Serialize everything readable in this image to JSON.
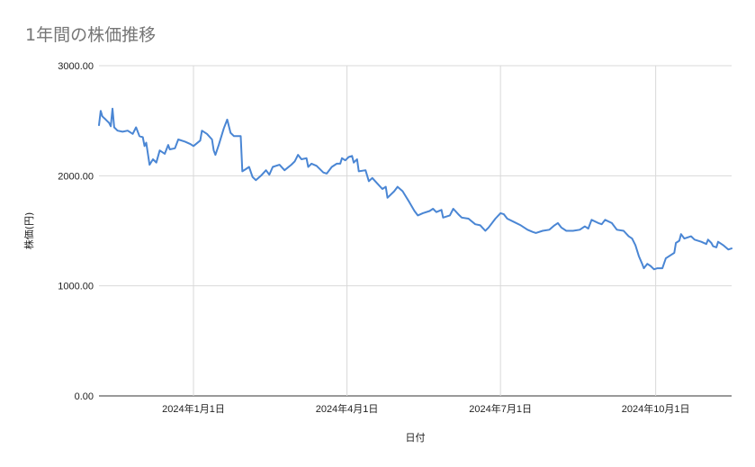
{
  "chart_data": {
    "type": "line",
    "title": "1年間の株価推移",
    "xlabel": "日付",
    "ylabel": "株価(円)",
    "ylim": [
      0,
      3000
    ],
    "y_ticks": [
      "0.00",
      "1000.00",
      "2000.00",
      "3000.00"
    ],
    "x_ticks": [
      {
        "date": "2024-01-01",
        "label": "2024年1月1日"
      },
      {
        "date": "2024-04-01",
        "label": "2024年4月1日"
      },
      {
        "date": "2024-07-01",
        "label": "2024年7月1日"
      },
      {
        "date": "2024-10-01",
        "label": "2024年10月1日"
      }
    ],
    "xlim": [
      "2023-11-06",
      "2024-11-15"
    ],
    "grid": true,
    "legend": "none",
    "series": [
      {
        "color": "#4a86d4",
        "points": [
          [
            "2023-11-06",
            2460
          ],
          [
            "2023-11-07",
            2590
          ],
          [
            "2023-11-08",
            2540
          ],
          [
            "2023-11-10",
            2510
          ],
          [
            "2023-11-12",
            2480
          ],
          [
            "2023-11-13",
            2450
          ],
          [
            "2023-11-14",
            2610
          ],
          [
            "2023-11-15",
            2440
          ],
          [
            "2023-11-17",
            2410
          ],
          [
            "2023-11-20",
            2400
          ],
          [
            "2023-11-23",
            2410
          ],
          [
            "2023-11-26",
            2380
          ],
          [
            "2023-11-28",
            2440
          ],
          [
            "2023-11-30",
            2360
          ],
          [
            "2023-12-02",
            2350
          ],
          [
            "2023-12-03",
            2270
          ],
          [
            "2023-12-04",
            2300
          ],
          [
            "2023-12-06",
            2100
          ],
          [
            "2023-12-08",
            2150
          ],
          [
            "2023-12-10",
            2120
          ],
          [
            "2023-12-12",
            2230
          ],
          [
            "2023-12-15",
            2200
          ],
          [
            "2023-12-17",
            2280
          ],
          [
            "2023-12-18",
            2240
          ],
          [
            "2023-12-21",
            2250
          ],
          [
            "2023-12-23",
            2330
          ],
          [
            "2023-12-27",
            2310
          ],
          [
            "2023-12-30",
            2290
          ],
          [
            "2024-01-01",
            2270
          ],
          [
            "2024-01-05",
            2320
          ],
          [
            "2024-01-06",
            2410
          ],
          [
            "2024-01-09",
            2380
          ],
          [
            "2024-01-12",
            2330
          ],
          [
            "2024-01-13",
            2230
          ],
          [
            "2024-01-14",
            2190
          ],
          [
            "2024-01-16",
            2280
          ],
          [
            "2024-01-19",
            2430
          ],
          [
            "2024-01-21",
            2510
          ],
          [
            "2024-01-23",
            2390
          ],
          [
            "2024-01-25",
            2360
          ],
          [
            "2024-01-29",
            2360
          ],
          [
            "2024-01-30",
            2040
          ],
          [
            "2024-02-01",
            2060
          ],
          [
            "2024-02-03",
            2080
          ],
          [
            "2024-02-05",
            1990
          ],
          [
            "2024-02-07",
            1960
          ],
          [
            "2024-02-10",
            2000
          ],
          [
            "2024-02-13",
            2050
          ],
          [
            "2024-02-15",
            2010
          ],
          [
            "2024-02-17",
            2080
          ],
          [
            "2024-02-21",
            2100
          ],
          [
            "2024-02-24",
            2050
          ],
          [
            "2024-02-28",
            2100
          ],
          [
            "2024-03-01",
            2130
          ],
          [
            "2024-03-03",
            2190
          ],
          [
            "2024-03-05",
            2150
          ],
          [
            "2024-03-08",
            2160
          ],
          [
            "2024-03-09",
            2080
          ],
          [
            "2024-03-11",
            2110
          ],
          [
            "2024-03-14",
            2090
          ],
          [
            "2024-03-18",
            2030
          ],
          [
            "2024-03-20",
            2020
          ],
          [
            "2024-03-23",
            2080
          ],
          [
            "2024-03-26",
            2110
          ],
          [
            "2024-03-28",
            2110
          ],
          [
            "2024-03-29",
            2160
          ],
          [
            "2024-03-31",
            2140
          ],
          [
            "2024-04-02",
            2170
          ],
          [
            "2024-04-04",
            2180
          ],
          [
            "2024-04-05",
            2120
          ],
          [
            "2024-04-07",
            2150
          ],
          [
            "2024-04-08",
            2040
          ],
          [
            "2024-04-12",
            2050
          ],
          [
            "2024-04-14",
            1950
          ],
          [
            "2024-04-16",
            1980
          ],
          [
            "2024-04-19",
            1930
          ],
          [
            "2024-04-22",
            1880
          ],
          [
            "2024-04-24",
            1900
          ],
          [
            "2024-04-25",
            1800
          ],
          [
            "2024-04-29",
            1860
          ],
          [
            "2024-05-01",
            1900
          ],
          [
            "2024-05-04",
            1860
          ],
          [
            "2024-05-08",
            1760
          ],
          [
            "2024-05-11",
            1680
          ],
          [
            "2024-05-13",
            1640
          ],
          [
            "2024-05-16",
            1660
          ],
          [
            "2024-05-20",
            1680
          ],
          [
            "2024-05-22",
            1700
          ],
          [
            "2024-05-24",
            1670
          ],
          [
            "2024-05-27",
            1690
          ],
          [
            "2024-05-28",
            1620
          ],
          [
            "2024-06-01",
            1640
          ],
          [
            "2024-06-03",
            1700
          ],
          [
            "2024-06-06",
            1650
          ],
          [
            "2024-06-08",
            1620
          ],
          [
            "2024-06-12",
            1610
          ],
          [
            "2024-06-16",
            1560
          ],
          [
            "2024-06-19",
            1550
          ],
          [
            "2024-06-22",
            1500
          ],
          [
            "2024-06-24",
            1530
          ],
          [
            "2024-06-28",
            1610
          ],
          [
            "2024-07-01",
            1660
          ],
          [
            "2024-07-03",
            1650
          ],
          [
            "2024-07-05",
            1610
          ],
          [
            "2024-07-09",
            1580
          ],
          [
            "2024-07-13",
            1550
          ],
          [
            "2024-07-17",
            1510
          ],
          [
            "2024-07-20",
            1490
          ],
          [
            "2024-07-22",
            1480
          ],
          [
            "2024-07-26",
            1500
          ],
          [
            "2024-07-30",
            1510
          ],
          [
            "2024-08-02",
            1550
          ],
          [
            "2024-08-04",
            1570
          ],
          [
            "2024-08-06",
            1530
          ],
          [
            "2024-08-09",
            1500
          ],
          [
            "2024-08-13",
            1500
          ],
          [
            "2024-08-17",
            1510
          ],
          [
            "2024-08-20",
            1540
          ],
          [
            "2024-08-22",
            1520
          ],
          [
            "2024-08-24",
            1600
          ],
          [
            "2024-08-28",
            1570
          ],
          [
            "2024-08-30",
            1560
          ],
          [
            "2024-09-01",
            1600
          ],
          [
            "2024-09-05",
            1570
          ],
          [
            "2024-09-08",
            1510
          ],
          [
            "2024-09-12",
            1500
          ],
          [
            "2024-09-15",
            1450
          ],
          [
            "2024-09-17",
            1430
          ],
          [
            "2024-09-19",
            1370
          ],
          [
            "2024-09-21",
            1270
          ],
          [
            "2024-09-23",
            1200
          ],
          [
            "2024-09-24",
            1160
          ],
          [
            "2024-09-26",
            1200
          ],
          [
            "2024-09-28",
            1180
          ],
          [
            "2024-09-30",
            1150
          ],
          [
            "2024-10-02",
            1160
          ],
          [
            "2024-10-05",
            1160
          ],
          [
            "2024-10-07",
            1250
          ],
          [
            "2024-10-10",
            1280
          ],
          [
            "2024-10-12",
            1300
          ],
          [
            "2024-10-13",
            1390
          ],
          [
            "2024-10-15",
            1410
          ],
          [
            "2024-10-16",
            1470
          ],
          [
            "2024-10-18",
            1430
          ],
          [
            "2024-10-22",
            1450
          ],
          [
            "2024-10-24",
            1420
          ],
          [
            "2024-10-28",
            1400
          ],
          [
            "2024-10-31",
            1380
          ],
          [
            "2024-11-01",
            1420
          ],
          [
            "2024-11-03",
            1390
          ],
          [
            "2024-11-04",
            1360
          ],
          [
            "2024-11-06",
            1350
          ],
          [
            "2024-11-07",
            1400
          ],
          [
            "2024-11-10",
            1370
          ],
          [
            "2024-11-13",
            1330
          ],
          [
            "2024-11-15",
            1340
          ]
        ]
      }
    ]
  }
}
